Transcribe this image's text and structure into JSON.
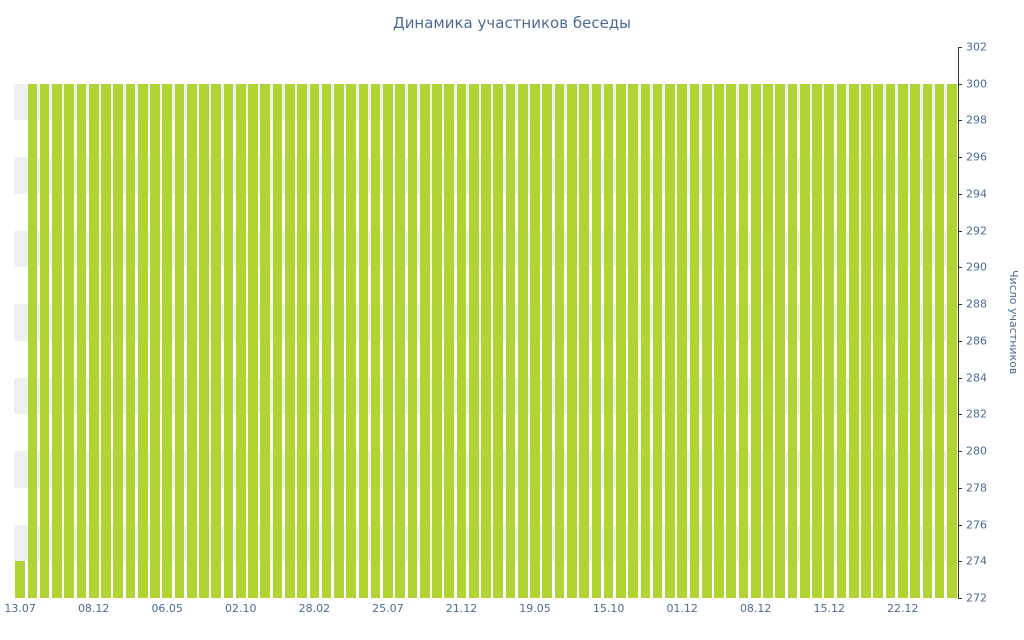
{
  "chart_data": {
    "type": "bar",
    "title": "Динамика участников беседы",
    "ylabel": "Число участников",
    "xlabel": "",
    "ylim": [
      272,
      302
    ],
    "ytick_step": 2,
    "yticks": [
      302,
      300,
      298,
      296,
      294,
      292,
      290,
      288,
      286,
      284,
      282,
      280,
      278,
      276,
      274,
      272
    ],
    "x_tick_labels": [
      "13.07",
      "08.12",
      "06.05",
      "02.10",
      "28.02",
      "25.07",
      "21.12",
      "19.05",
      "15.10",
      "01.12",
      "08.12",
      "15.12",
      "22.12"
    ],
    "x_tick_every": 6,
    "grid": "horizontal-bands",
    "legend": null,
    "values": [
      274,
      300,
      300,
      300,
      300,
      300,
      300,
      300,
      300,
      300,
      300,
      300,
      300,
      300,
      300,
      300,
      300,
      300,
      300,
      300,
      300,
      300,
      300,
      300,
      300,
      300,
      300,
      300,
      300,
      300,
      300,
      300,
      300,
      300,
      300,
      300,
      300,
      300,
      300,
      300,
      300,
      300,
      300,
      300,
      300,
      300,
      300,
      300,
      300,
      300,
      300,
      300,
      300,
      300,
      300,
      300,
      300,
      300,
      300,
      300,
      300,
      300,
      300,
      300,
      300,
      300,
      300,
      300,
      300,
      300,
      300,
      300,
      300,
      300,
      300,
      300,
      300
    ],
    "colors": {
      "bar": "#b0d434",
      "band": "#f0f0f0",
      "axis": "#333333",
      "text": "#4d6a96",
      "background": "#ffffff"
    }
  }
}
